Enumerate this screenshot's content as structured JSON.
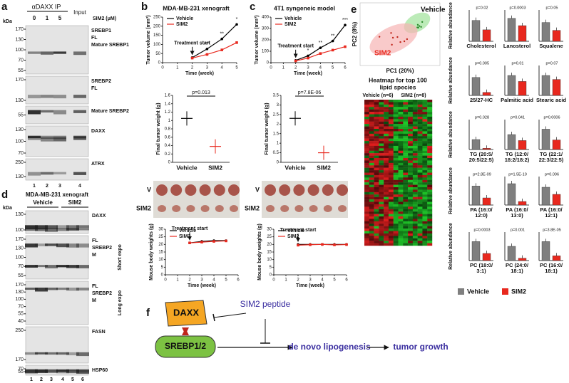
{
  "panel_a": {
    "label": "a",
    "ip_title": "αDAXX IP",
    "input": "Input",
    "concentrations": [
      "0",
      "1",
      "5"
    ],
    "treatment": "SIM2 (μM)",
    "kda": "kDa",
    "blots": [
      {
        "markers": [
          "170",
          "130",
          "100",
          "70",
          "55"
        ],
        "labels": [
          "SREBP1",
          "FL",
          "Mature SREBP1"
        ]
      },
      {
        "markers": [
          "170",
          "130"
        ],
        "labels": [
          "SREBP2",
          "FL"
        ]
      },
      {
        "markers": [
          "55"
        ],
        "labels": [
          "Mature SREBP2"
        ]
      },
      {
        "markers": [
          "130",
          "100",
          "70"
        ],
        "labels": [
          "DAXX"
        ]
      },
      {
        "markers": [
          "250",
          "130"
        ],
        "labels": [
          "ATRX"
        ]
      }
    ],
    "lanes": [
      "1",
      "2",
      "3",
      "4"
    ]
  },
  "panel_d": {
    "label": "d",
    "title": "MDA-MB-231 xenograft",
    "groups": [
      "Vehicle",
      "SIM2"
    ],
    "kda": "kDa",
    "blots": [
      {
        "markers": [
          "130",
          "100"
        ],
        "labels": [
          "DAXX"
        ]
      },
      {
        "markers": [
          "170",
          "130",
          "100",
          "70",
          "55"
        ],
        "labels": [
          "FL",
          "SREBP2",
          "M"
        ],
        "side": "Short expo"
      },
      {
        "markers": [
          "170",
          "130",
          "100",
          "70",
          "55",
          "40"
        ],
        "labels": [
          "FL",
          "SREBP2",
          "M"
        ],
        "side": "Long expo"
      },
      {
        "markers": [
          "250",
          "170"
        ],
        "labels": [
          "FASN"
        ]
      },
      {
        "markers": [
          "70",
          "55"
        ],
        "labels": [
          "HSP60"
        ]
      }
    ],
    "lanes": [
      "1",
      "2",
      "3",
      "4",
      "5",
      "6"
    ]
  },
  "panel_b": {
    "label": "b",
    "title": "MDA-MB-231 xenograft",
    "photo_labels": [
      "V",
      "SIM2"
    ],
    "tumor_volume": {
      "type": "line",
      "ylabel": "Tumor volume (mm³)",
      "xlabel": "Time (week)",
      "xlim": [
        0,
        5
      ],
      "xticks": [
        0,
        1,
        2,
        3,
        4,
        5
      ],
      "ylim": [
        0,
        250
      ],
      "yticks": [
        0,
        50,
        100,
        150,
        200,
        250
      ],
      "x": [
        2,
        3,
        4,
        5
      ],
      "series": [
        {
          "name": "Vehicle",
          "color": "#000000",
          "values": [
            28,
            75,
            130,
            210
          ]
        },
        {
          "name": "SIM2",
          "color": "#e8281e",
          "values": [
            25,
            45,
            70,
            110
          ]
        }
      ],
      "annotation": "Treatment start",
      "stars": [
        "**",
        "**",
        "*"
      ]
    },
    "tumor_weight": {
      "type": "dot",
      "ylabel": "Final tumor weight (g)",
      "categories": [
        "Vehicle",
        "SIM2"
      ],
      "values": [
        1.05,
        0.38
      ],
      "colors": [
        "#000000",
        "#e8281e"
      ],
      "ylim": [
        0,
        1.6
      ],
      "yticks": [
        0,
        0.2,
        0.4,
        0.6,
        0.8,
        1,
        1.2,
        1.4,
        1.6
      ],
      "p_value": "p=0.013"
    },
    "body_weight": {
      "type": "line",
      "ylabel": "Mouse body weights (g)",
      "xlabel": "Time (week)",
      "xlim": [
        0,
        6
      ],
      "xticks": [
        0,
        1,
        2,
        3,
        4,
        5,
        6
      ],
      "ylim": [
        0,
        30
      ],
      "yticks": [
        0,
        5,
        10,
        15,
        20,
        25,
        30
      ],
      "x": [
        2,
        3,
        4,
        5
      ],
      "series": [
        {
          "name": "Vehicle",
          "color": "#000000",
          "values": [
            21,
            22,
            22.5,
            22.5
          ]
        },
        {
          "name": "SIM2",
          "color": "#e8281e",
          "values": [
            21,
            21.5,
            22,
            22.3
          ]
        }
      ],
      "annotation": "Treatment start"
    }
  },
  "panel_c": {
    "label": "c",
    "title": "4T1 syngeneic model",
    "photo_labels": [
      "V",
      "SIM2"
    ],
    "tumor_volume": {
      "type": "line",
      "ylabel": "Tumor volume (mm³)",
      "xlabel": "Time (week)",
      "xlim": [
        0,
        6
      ],
      "xticks": [
        0,
        1,
        2,
        3,
        4,
        5,
        6
      ],
      "ylim": [
        0,
        400
      ],
      "yticks": [
        0,
        100,
        200,
        300,
        400
      ],
      "x": [
        2,
        3,
        4,
        5,
        6
      ],
      "series": [
        {
          "name": "Vehicle",
          "color": "#000000",
          "values": [
            20,
            60,
            130,
            190,
            330
          ]
        },
        {
          "name": "SIM2",
          "color": "#e8281e",
          "values": [
            15,
            40,
            80,
            110,
            140
          ]
        }
      ],
      "annotation": "Treatment start",
      "stars": [
        "*",
        "**",
        "**",
        "***"
      ]
    },
    "tumor_weight": {
      "type": "dot",
      "ylabel": "Final tumor weight (g)",
      "categories": [
        "Vehicle",
        "SIM2"
      ],
      "values": [
        2.3,
        0.5
      ],
      "colors": [
        "#000000",
        "#e8281e"
      ],
      "ylim": [
        0,
        3.5
      ],
      "yticks": [
        0,
        0.5,
        1,
        1.5,
        2,
        2.5,
        3,
        3.5
      ],
      "p_value": "p=7.8E-06"
    },
    "body_weight": {
      "type": "line",
      "ylabel": "Mouse body weights (g)",
      "xlabel": "Time (week)",
      "xlim": [
        0,
        6
      ],
      "xticks": [
        0,
        1,
        2,
        3,
        4,
        5,
        6
      ],
      "ylim": [
        0,
        30
      ],
      "yticks": [
        0,
        5,
        10,
        15,
        20,
        25,
        30
      ],
      "x": [
        2,
        3,
        4,
        5,
        6
      ],
      "series": [
        {
          "name": "Vehicle",
          "color": "#000000",
          "values": [
            20,
            20,
            20,
            20,
            20
          ]
        },
        {
          "name": "SIM2",
          "color": "#e8281e",
          "values": [
            19.5,
            19.8,
            20,
            19.7,
            19.9
          ]
        }
      ],
      "annotation": "Treatment start"
    }
  },
  "panel_e": {
    "label": "e",
    "pca": {
      "xlabel": "PC1 (20%)",
      "ylabel": "PC2 (8%)",
      "groups": [
        "Vehicle",
        "SIM2"
      ]
    },
    "heatmap": {
      "title": [
        "Heatmap for top 100",
        "lipid species"
      ],
      "groups": [
        "Vehicle (n=6)",
        "SIM2 (n=8)"
      ]
    },
    "row_labels": [
      "Relative abundance",
      "Relative abundance",
      "Relative abundance",
      "Relative abundance",
      "Relative abundance"
    ],
    "legend": [
      {
        "name": "Vehicle",
        "color": "#7f7f7f"
      },
      {
        "name": "SIM2",
        "color": "#e8281e"
      }
    ],
    "charts": [
      {
        "type": "bar",
        "title": [
          "Cholesterol"
        ],
        "p_value": "p=0.02",
        "values": [
          2.0,
          1.1
        ],
        "ylim": [
          0,
          3
        ]
      },
      {
        "type": "bar",
        "title": [
          "Lanosterol"
        ],
        "p_value": "p=0.0003",
        "values": [
          11,
          7.5
        ],
        "ylim": [
          0,
          15
        ]
      },
      {
        "type": "bar",
        "title": [
          "Squalene"
        ],
        "p_value": "p=0.05",
        "values": [
          12,
          7
        ],
        "ylim": [
          0,
          20
        ]
      },
      {
        "type": "bar",
        "title": [
          "25/27-HC"
        ],
        "p_value": "p=0.005",
        "values": [
          1.8,
          0.3
        ],
        "ylim": [
          0,
          3
        ]
      },
      {
        "type": "bar",
        "title": [
          "Palmitic acid"
        ],
        "p_value": "p=0.01",
        "values": [
          40,
          28
        ],
        "ylim": [
          0,
          60
        ]
      },
      {
        "type": "bar",
        "title": [
          "Stearic acid"
        ],
        "p_value": "p=0.07",
        "values": [
          10,
          8
        ],
        "ylim": [
          0,
          15
        ]
      },
      {
        "type": "bar",
        "title": [
          "TG (20:5/",
          "20:5/22:5)"
        ],
        "p_value": "p=0.028",
        "values": [
          4,
          0.5
        ],
        "ylim": [
          0,
          12
        ]
      },
      {
        "type": "bar",
        "title": [
          "TG (12:0/",
          "18:2/18:2)"
        ],
        "p_value": "p=0.041",
        "values": [
          20,
          12
        ],
        "ylim": [
          0,
          40
        ]
      },
      {
        "type": "bar",
        "title": [
          "TG (22:1/",
          "22:3/22:5)"
        ],
        "p_value": "p=0.0006",
        "values": [
          17,
          8
        ],
        "ylim": [
          0,
          25
        ]
      },
      {
        "type": "bar",
        "title": [
          "PA (16:0/",
          "12:0)"
        ],
        "p_value": "p=2.8E-09",
        "values": [
          4,
          1.5
        ],
        "ylim": [
          0,
          6
        ]
      },
      {
        "type": "bar",
        "title": [
          "PA (16:0/",
          "13:0)"
        ],
        "p_value": "p=1.5E-10",
        "values": [
          6,
          1
        ],
        "ylim": [
          0,
          8
        ]
      },
      {
        "type": "bar",
        "title": [
          "PA (16:0/",
          "12:1)"
        ],
        "p_value": "p=0.006",
        "values": [
          5,
          3
        ],
        "ylim": [
          0,
          8
        ]
      },
      {
        "type": "bar",
        "title": [
          "PC (18:0/",
          "3:1)"
        ],
        "p_value": "p=0.0003",
        "values": [
          8,
          3
        ],
        "ylim": [
          0,
          12
        ]
      },
      {
        "type": "bar",
        "title": [
          "PC (24:0/",
          "18:1)"
        ],
        "p_value": "p=0.001",
        "values": [
          6,
          1
        ],
        "ylim": [
          0,
          12
        ]
      },
      {
        "type": "bar",
        "title": [
          "PC (16:0/",
          "18:1)"
        ],
        "p_value": "p=3.8E-05",
        "values": [
          20,
          5
        ],
        "ylim": [
          0,
          30
        ]
      }
    ]
  },
  "panel_f": {
    "label": "f",
    "nodes": [
      "DAXX",
      "SREBP1/2",
      "SIM2 peptide",
      "de novo lipogenesis",
      "tumor growth"
    ]
  }
}
